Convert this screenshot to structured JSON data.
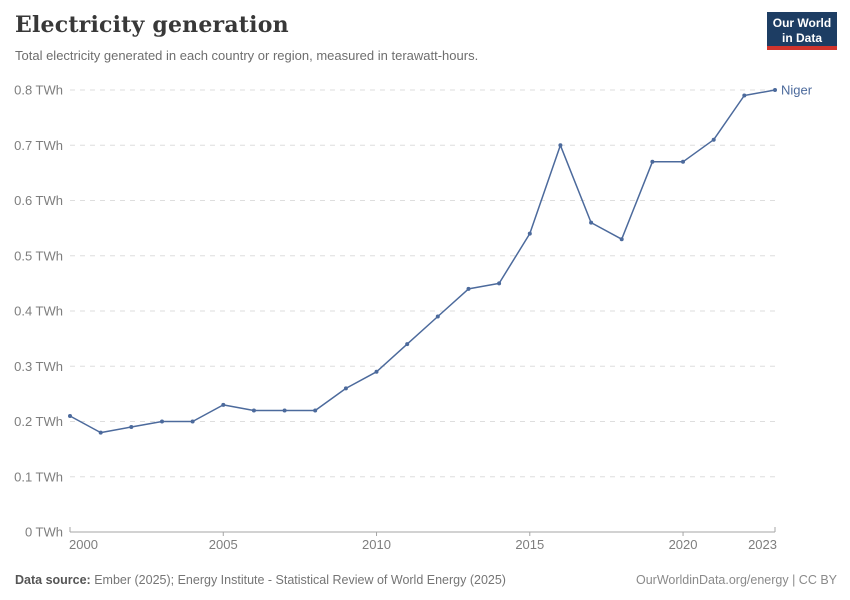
{
  "header": {
    "title": "Electricity generation",
    "subtitle": "Total electricity generated in each country or region, measured in terawatt-hours.",
    "logo": {
      "line1": "Our World",
      "line2": "in Data",
      "bg_color": "#1d3d63",
      "accent_color": "#d1342c"
    }
  },
  "chart_data": {
    "type": "line",
    "title": "Electricity generation",
    "unit": "TWh",
    "xlabel": "",
    "ylabel": "",
    "xlim": [
      2000,
      2023
    ],
    "ylim": [
      0,
      0.8
    ],
    "grid": "horizontal-dashed",
    "legend_position": "end-of-line-label",
    "x": [
      2000,
      2001,
      2002,
      2003,
      2004,
      2005,
      2006,
      2007,
      2008,
      2009,
      2010,
      2011,
      2012,
      2013,
      2014,
      2015,
      2016,
      2017,
      2018,
      2019,
      2020,
      2021,
      2022,
      2023
    ],
    "series": [
      {
        "name": "Niger",
        "color": "#4c6a9c",
        "values": [
          0.21,
          0.18,
          0.19,
          0.2,
          0.2,
          0.23,
          0.22,
          0.22,
          0.22,
          0.26,
          0.29,
          0.34,
          0.39,
          0.44,
          0.45,
          0.54,
          0.7,
          0.56,
          0.53,
          0.67,
          0.67,
          0.71,
          0.79,
          0.8
        ]
      }
    ],
    "yticks": [
      {
        "value": 0,
        "label": "0 TWh"
      },
      {
        "value": 0.1,
        "label": "0.1 TWh"
      },
      {
        "value": 0.2,
        "label": "0.2 TWh"
      },
      {
        "value": 0.3,
        "label": "0.3 TWh"
      },
      {
        "value": 0.4,
        "label": "0.4 TWh"
      },
      {
        "value": 0.5,
        "label": "0.5 TWh"
      },
      {
        "value": 0.6,
        "label": "0.6 TWh"
      },
      {
        "value": 0.7,
        "label": "0.7 TWh"
      },
      {
        "value": 0.8,
        "label": "0.8 TWh"
      }
    ],
    "xticks": [
      {
        "value": 2000,
        "label": "2000"
      },
      {
        "value": 2005,
        "label": "2005"
      },
      {
        "value": 2010,
        "label": "2010"
      },
      {
        "value": 2015,
        "label": "2015"
      },
      {
        "value": 2020,
        "label": "2020"
      },
      {
        "value": 2023,
        "label": "2023"
      }
    ]
  },
  "footer": {
    "source_label": "Data source:",
    "source_text": "Ember (2025); Energy Institute - Statistical Review of World Energy (2025)",
    "right_text": "OurWorldinData.org/energy | CC BY"
  },
  "colors": {
    "line": "#4c6a9c",
    "gridline": "#dedede",
    "axis": "#a5a5a5",
    "axis_text": "#7e7e7e",
    "title_text": "#383838",
    "subtitle_text": "#6e6e6e"
  }
}
